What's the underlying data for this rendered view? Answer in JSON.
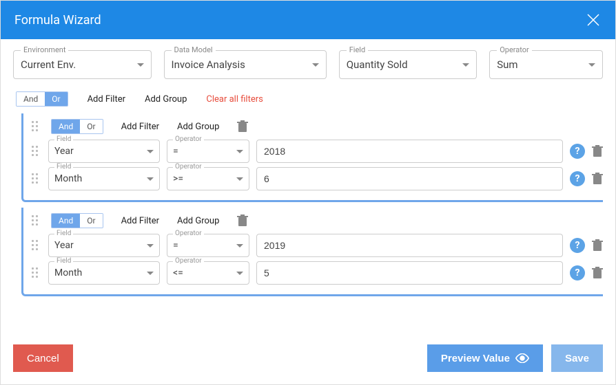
{
  "colors": {
    "brand": "#1e88e5",
    "accent_light": "#6fa6ea",
    "danger": "#e05a4f",
    "danger_text": "#e74c3c",
    "save_btn": "#86b7ec",
    "preview_btn": "#5a9de8",
    "help_bg": "#5ca3e6",
    "border": "#cccccc"
  },
  "header": {
    "title": "Formula Wizard"
  },
  "selectors": {
    "environment": {
      "label": "Environment",
      "value": "Current Env."
    },
    "data_model": {
      "label": "Data Model",
      "value": "Invoice Analysis"
    },
    "field": {
      "label": "Field",
      "value": "Quantity Sold"
    },
    "operator": {
      "label": "Operator",
      "value": "Sum"
    }
  },
  "labels": {
    "and": "And",
    "or": "Or",
    "add_filter": "Add Filter",
    "add_group": "Add Group",
    "clear_all": "Clear all filters",
    "field": "Field",
    "operator": "Operator",
    "help": "?"
  },
  "root": {
    "active": "or"
  },
  "groups": [
    {
      "active": "and",
      "rows": [
        {
          "field": "Year",
          "op": "=",
          "value": "2018"
        },
        {
          "field": "Month",
          "op": ">=",
          "value": "6"
        }
      ]
    },
    {
      "active": "and",
      "rows": [
        {
          "field": "Year",
          "op": "=",
          "value": "2019"
        },
        {
          "field": "Month",
          "op": "<=",
          "value": "5"
        }
      ]
    }
  ],
  "footer": {
    "cancel": "Cancel",
    "preview": "Preview Value",
    "save": "Save"
  }
}
